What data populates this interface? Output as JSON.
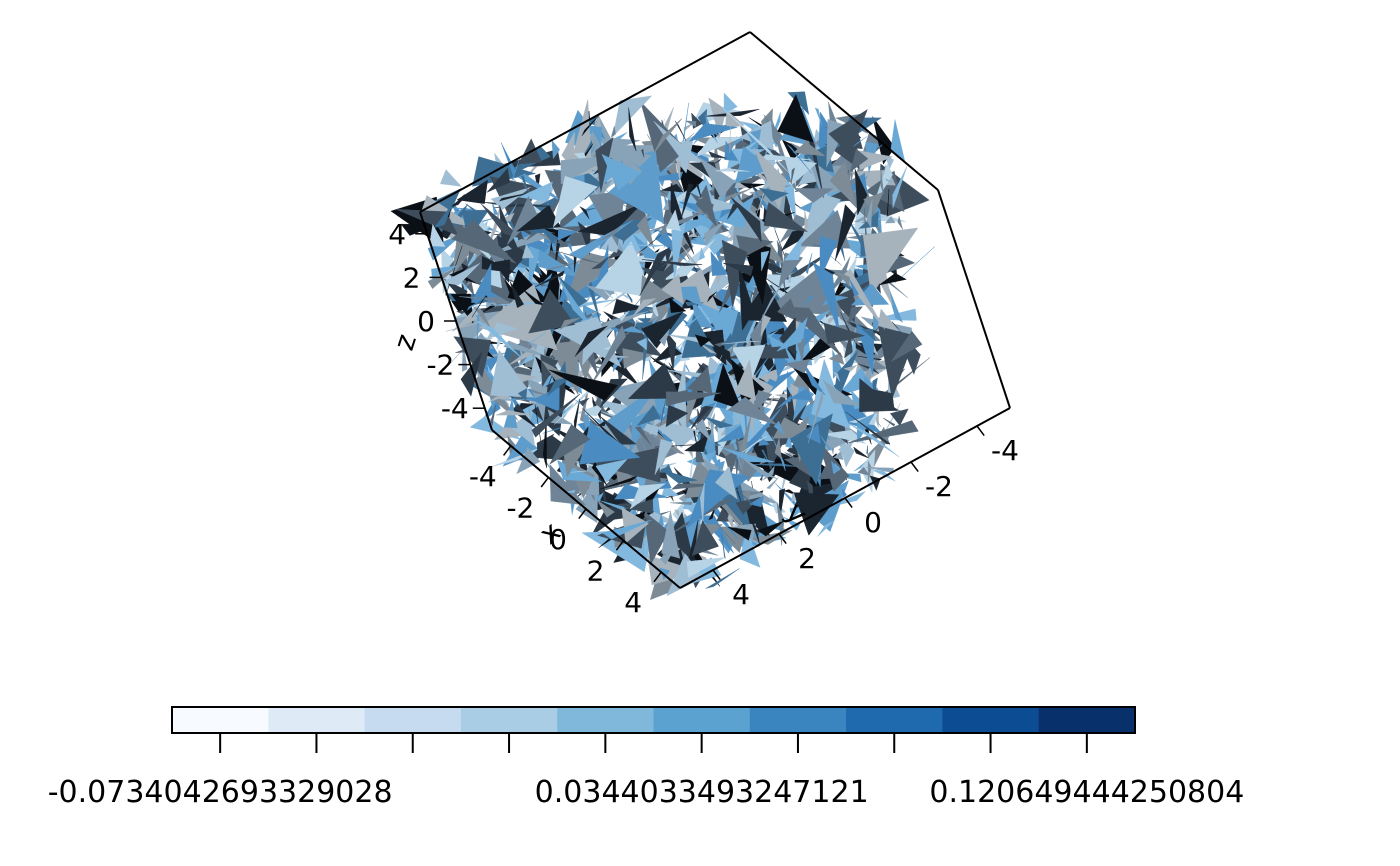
{
  "chart_data": {
    "type": "3d-surface",
    "title": "",
    "axes": {
      "x": {
        "label": "x",
        "ticks": [
          -4,
          -2,
          0,
          2,
          4
        ]
      },
      "y": {
        "label": "y",
        "ticks": [
          -4,
          -2,
          0,
          2,
          4
        ]
      },
      "z": {
        "label": "z",
        "ticks": [
          -4,
          -2,
          0,
          2,
          4
        ]
      }
    },
    "xlim": [
      -5,
      5
    ],
    "ylim": [
      -5,
      5
    ],
    "zlim": [
      -5,
      5
    ],
    "box": true,
    "colormap": "Blues",
    "colorbar": {
      "placement": "bottom",
      "colors": [
        "#f7fbff",
        "#deebf7",
        "#c6dbef",
        "#a9cde4",
        "#80b8db",
        "#5ba2d0",
        "#3a84c0",
        "#1f69ae",
        "#0b4c93",
        "#08306b"
      ],
      "ticks": 10,
      "tick_labels": [
        "-0.0734042693329028",
        "0.0344033493247121",
        "0.120649444250804"
      ],
      "label_positions": [
        0,
        5,
        9
      ]
    }
  }
}
